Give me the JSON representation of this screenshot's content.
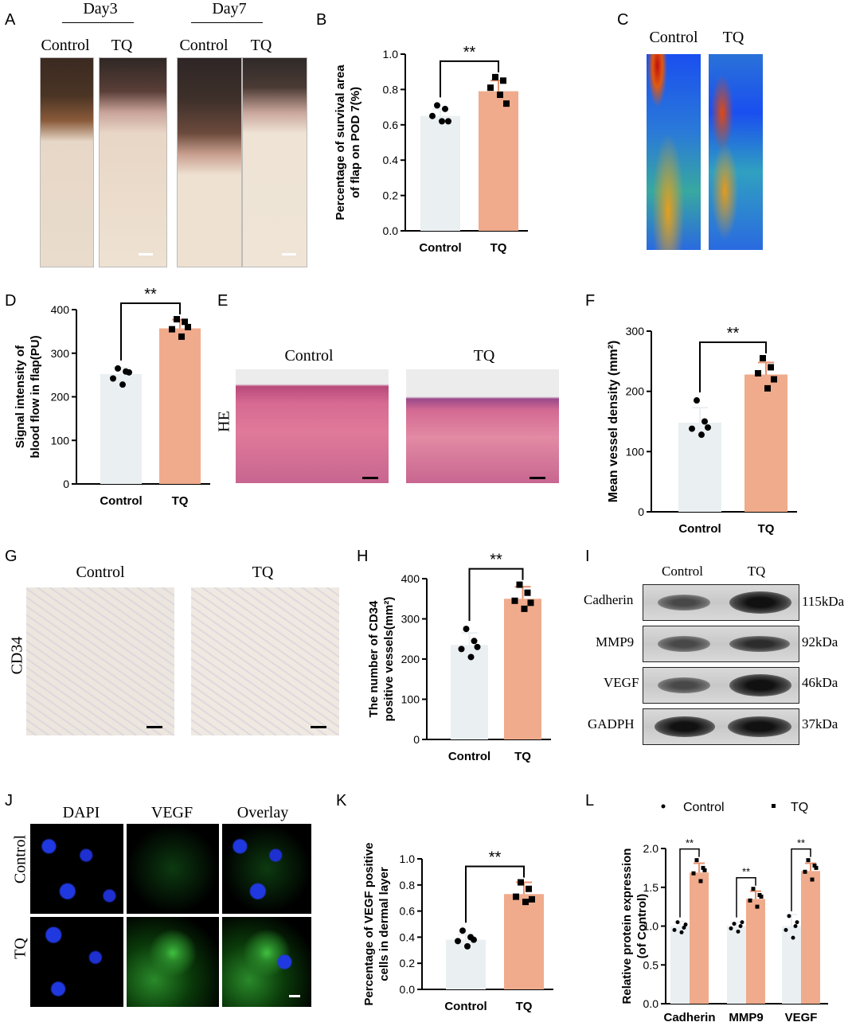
{
  "panels": {
    "a": "A",
    "b": "B",
    "c": "C",
    "d": "D",
    "e": "E",
    "f": "F",
    "g": "G",
    "h": "H",
    "i": "I",
    "j": "J",
    "k": "K",
    "l": "L"
  },
  "panelA": {
    "day3": "Day3",
    "day7": "Day7",
    "control": "Control",
    "tq": "TQ"
  },
  "panelC": {
    "control": "Control",
    "tq": "TQ"
  },
  "panelE": {
    "control": "Control",
    "tq": "TQ",
    "row": "HE"
  },
  "panelG": {
    "control": "Control",
    "tq": "TQ",
    "row": "CD34"
  },
  "panelI": {
    "control": "Control",
    "tq": "TQ",
    "rows": [
      {
        "name": "Cadherin",
        "kda": "115kDa"
      },
      {
        "name": "MMP9",
        "kda": "92kDa"
      },
      {
        "name": "VEGF",
        "kda": "46kDa"
      },
      {
        "name": "GADPH",
        "kda": "37kDa"
      }
    ]
  },
  "panelJ": {
    "dapi": "DAPI",
    "vegf": "VEGF",
    "overlay": "Overlay",
    "control": "Control",
    "tq": "TQ"
  },
  "colors": {
    "control_bar": "#eaeff2",
    "tq_bar": "#f0ab8c",
    "tq_err": "#e8916d"
  },
  "chart_data": [
    {
      "id": "B",
      "type": "bar",
      "categories": [
        "Control",
        "TQ"
      ],
      "values": [
        0.65,
        0.79
      ],
      "errors": [
        0.04,
        0.06
      ],
      "points": [
        [
          0.71,
          0.69,
          0.65,
          0.62,
          0.62
        ],
        [
          0.87,
          0.85,
          0.81,
          0.77,
          0.72
        ]
      ],
      "ylabel_line1": "Percentage of survival area",
      "ylabel_line2": "of flap on POD 7(%)",
      "ylim": [
        0,
        1.0
      ],
      "yticks": [
        "0.0",
        "0.2",
        "0.4",
        "0.6",
        "0.8",
        "1.0"
      ],
      "sig": "**"
    },
    {
      "id": "D",
      "type": "bar",
      "categories": [
        "Control",
        "TQ"
      ],
      "values": [
        252,
        357
      ],
      "errors": [
        15,
        20
      ],
      "points": [
        [
          265,
          258,
          242,
          228,
          256
        ],
        [
          378,
          372,
          355,
          338,
          360
        ]
      ],
      "ylabel_line1": "Signal intensity of",
      "ylabel_line2": "blood flow in flap(PU)",
      "ylim": [
        0,
        400
      ],
      "yticks": [
        "0",
        "100",
        "200",
        "300",
        "400"
      ],
      "sig": "**"
    },
    {
      "id": "F",
      "type": "bar",
      "categories": [
        "Control",
        "TQ"
      ],
      "values": [
        148,
        228
      ],
      "errors": [
        25,
        20
      ],
      "points": [
        [
          185,
          150,
          138,
          128,
          140
        ],
        [
          255,
          240,
          230,
          205,
          220
        ]
      ],
      "ylabel_line1": "Mean vessel density (mm²)",
      "ylabel_line2": "",
      "ylim": [
        0,
        300
      ],
      "yticks": [
        "0",
        "100",
        "200",
        "300"
      ],
      "sig": "**"
    },
    {
      "id": "H",
      "type": "bar",
      "categories": [
        "Control",
        "TQ"
      ],
      "values": [
        235,
        350
      ],
      "errors": [
        30,
        30
      ],
      "points": [
        [
          275,
          245,
          225,
          205,
          230
        ],
        [
          385,
          365,
          345,
          325,
          340
        ]
      ],
      "ylabel_line1": "The number of CD34",
      "ylabel_line2": "positive vessels(mm²)",
      "ylim": [
        0,
        400
      ],
      "yticks": [
        "0",
        "100",
        "200",
        "300",
        "400"
      ],
      "sig": "**"
    },
    {
      "id": "K",
      "type": "bar",
      "categories": [
        "Control",
        "TQ"
      ],
      "values": [
        0.38,
        0.73
      ],
      "errors": [
        0.04,
        0.09
      ],
      "points": [
        [
          0.45,
          0.4,
          0.37,
          0.33,
          0.38
        ],
        [
          0.82,
          0.77,
          0.71,
          0.67,
          0.69
        ]
      ],
      "ylabel_line1": "Percentage of VEGF positive",
      "ylabel_line2": "cells in dermal layer",
      "ylim": [
        0,
        1.0
      ],
      "yticks": [
        "0.0",
        "0.2",
        "0.4",
        "0.6",
        "0.8",
        "1.0"
      ],
      "sig": "**"
    },
    {
      "id": "L",
      "type": "bar",
      "categories": [
        "Cadherin",
        "MMP9",
        "VEGF"
      ],
      "series": [
        {
          "name": "Control",
          "values": [
            1.0,
            1.0,
            1.0
          ],
          "errors": [
            0.06,
            0.05,
            0.15
          ],
          "points": [
            [
              1.05,
              0.98,
              0.95,
              0.92,
              1.02
            ],
            [
              1.03,
              1.0,
              0.97,
              0.93,
              1.05
            ],
            [
              1.13,
              1.0,
              0.95,
              0.85,
              1.05
            ]
          ]
        },
        {
          "name": "TQ",
          "values": [
            1.69,
            1.35,
            1.71
          ],
          "errors": [
            0.12,
            0.1,
            0.1
          ],
          "points": [
            [
              1.85,
              1.75,
              1.68,
              1.58,
              1.72
            ],
            [
              1.48,
              1.4,
              1.33,
              1.25,
              1.38
            ],
            [
              1.85,
              1.78,
              1.7,
              1.6,
              1.75
            ]
          ]
        }
      ],
      "ylabel_line1": "Relative protein expression",
      "ylabel_line2": "(of Control)",
      "ylim": [
        0,
        2.0
      ],
      "yticks": [
        "0.0",
        "0.5",
        "1.0",
        "1.5",
        "2.0"
      ],
      "sig": "**",
      "legend": "top"
    }
  ]
}
